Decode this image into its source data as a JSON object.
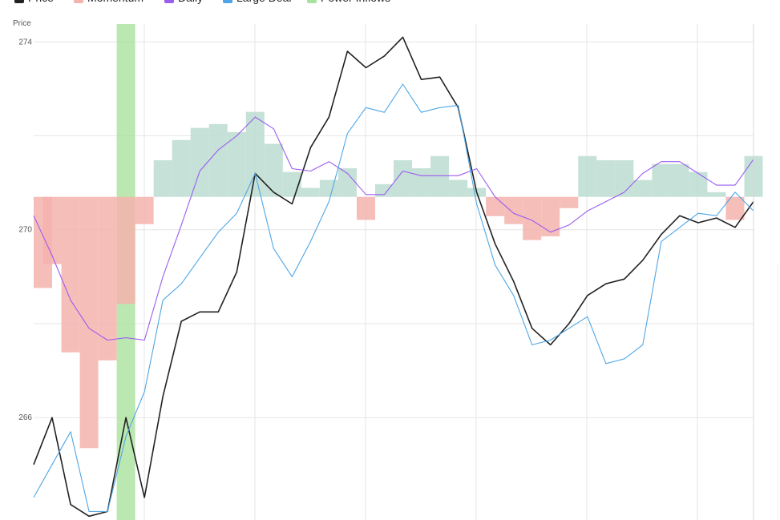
{
  "chart_data": {
    "type": "line",
    "y_label": "Price",
    "categories": [
      null,
      null,
      null,
      null,
      null,
      null,
      null,
      null,
      null,
      null,
      null,
      null,
      null,
      null,
      null,
      null,
      null,
      null,
      null,
      null,
      null,
      null,
      null,
      null,
      null,
      null,
      null,
      null,
      null,
      null,
      null,
      null,
      null,
      null,
      null,
      null,
      null,
      null,
      null,
      null
    ],
    "ylim": [
      263.82,
      274.38
    ],
    "yticks": [
      266,
      270,
      274
    ],
    "minor_yticks": [
      268,
      272
    ],
    "grid": true,
    "momentum_baseline": 270.7,
    "series": [
      {
        "name": "Price",
        "kind": "line",
        "color": "#222222",
        "values": [
          265.0,
          266.0,
          264.15,
          263.9,
          264.0,
          266.0,
          264.3,
          266.45,
          268.05,
          268.25,
          268.25,
          269.1,
          271.2,
          270.8,
          270.55,
          271.75,
          272.4,
          273.8,
          273.45,
          273.7,
          274.1,
          273.2,
          273.25,
          272.6,
          270.8,
          269.7,
          268.9,
          267.9,
          267.55,
          268.0,
          268.6,
          268.85,
          268.95,
          269.35,
          269.9,
          270.3,
          270.15,
          270.25,
          270.05,
          270.6
        ]
      },
      {
        "name": "Momentum",
        "kind": "bar",
        "color": "#f5b3ad",
        "color_up": "#bcdcd0",
        "values": [
          -1.94,
          -1.43,
          -3.31,
          -5.35,
          -3.48,
          -2.28,
          -0.58,
          0.78,
          1.21,
          1.47,
          1.55,
          1.38,
          1.81,
          1.13,
          0.53,
          0.19,
          0.36,
          0.61,
          -0.49,
          0.27,
          0.78,
          0.61,
          0.87,
          0.36,
          0.19,
          -0.41,
          -0.58,
          -0.92,
          -0.84,
          -0.24,
          0.87,
          0.78,
          0.78,
          0.36,
          0.7,
          0.7,
          0.53,
          0.1,
          -0.49,
          0.87
        ]
      },
      {
        "name": "Daily",
        "kind": "line",
        "color": "#9b5cf0",
        "values": [
          270.3,
          269.45,
          268.5,
          267.9,
          267.65,
          267.7,
          267.65,
          269.0,
          270.1,
          271.25,
          271.7,
          272.0,
          272.4,
          272.15,
          271.3,
          271.25,
          271.45,
          271.2,
          270.75,
          270.75,
          271.25,
          271.15,
          271.15,
          271.15,
          271.3,
          270.7,
          270.35,
          270.2,
          269.95,
          270.1,
          270.4,
          270.6,
          270.8,
          271.2,
          271.45,
          271.45,
          271.2,
          270.95,
          270.95,
          271.5
        ]
      },
      {
        "name": "Large Deal",
        "kind": "line",
        "color": "#4ea6e6",
        "values": [
          264.3,
          265.0,
          265.7,
          264.0,
          264.0,
          265.6,
          266.55,
          268.5,
          268.85,
          269.4,
          269.95,
          270.35,
          271.2,
          269.6,
          269.0,
          269.75,
          270.6,
          272.05,
          272.6,
          272.5,
          273.1,
          272.5,
          272.6,
          272.65,
          270.55,
          269.25,
          268.6,
          267.55,
          267.65,
          267.9,
          268.15,
          267.15,
          267.25,
          267.55,
          269.75,
          270.05,
          270.35,
          270.3,
          270.8,
          270.4
        ]
      }
    ],
    "highlight": {
      "name": "Power Inflows",
      "color": "#a9e29c",
      "at": [
        5
      ]
    }
  }
}
